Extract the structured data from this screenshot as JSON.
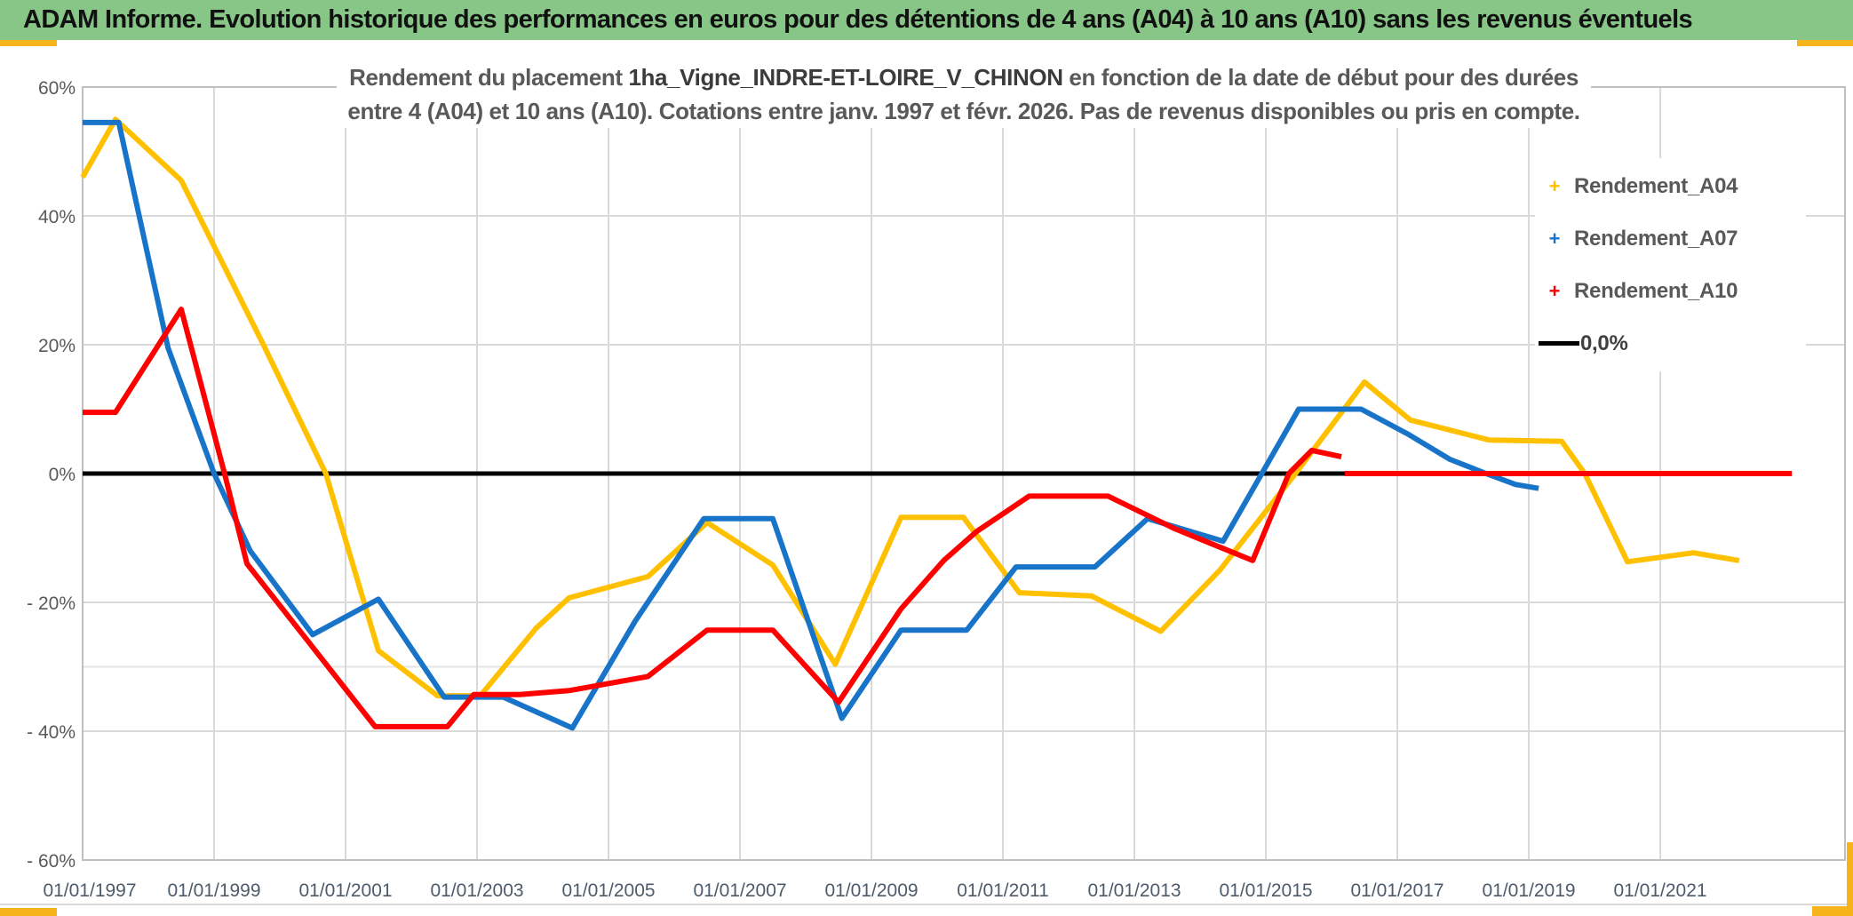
{
  "header": {
    "title": "ADAM Informe. Evolution historique des performances en euros pour des détentions de 4 ans (A04) à 10 ans (A10) sans les revenus éventuels"
  },
  "chart": {
    "title_line1_pre": "Rendement du placement ",
    "title_line1_name": "1ha_Vigne_INDRE-ET-LOIRE_V_CHINON",
    "title_line1_post": " en fonction de la date de début pour des durées",
    "title_line2": "entre 4 (A04) et 10 ans (A10). Cotations entre janv. 1997 et févr. 2026. Pas de revenus disponibles ou pris en compte.",
    "legend": [
      {
        "label": "Rendement_A04",
        "marker": "+",
        "color": "#FFC000"
      },
      {
        "label": "Rendement_A07",
        "marker": "+",
        "color": "#1874C9"
      },
      {
        "label": "Rendement_A10",
        "marker": "+",
        "color": "#FF0000"
      },
      {
        "label": "0,0%",
        "marker": "line",
        "color": "#000000"
      }
    ]
  },
  "chart_data": {
    "type": "line",
    "title": "Rendement du placement 1ha_Vigne_INDRE-ET-LOIRE_V_CHINON en fonction de la date de début pour des durées entre 4 (A04) et 10 ans (A10). Cotations entre janv. 1997 et févr. 2026. Pas de revenus disponibles ou pris en compte.",
    "x_axis": {
      "min": 1997.0,
      "max": 2023.81,
      "tick_values": [
        1997,
        1999,
        2001,
        2003,
        2005,
        2007,
        2009,
        2011,
        2013,
        2015,
        2017,
        2019,
        2021
      ],
      "tick_labels": [
        "01/01/1997",
        "01/01/1999",
        "01/01/2001",
        "01/01/2003",
        "01/01/2005",
        "01/01/2007",
        "01/01/2009",
        "01/01/2011",
        "01/01/2013",
        "01/01/2015",
        "01/01/2017",
        "01/01/2019",
        "01/01/2021"
      ],
      "label_color": "#4E5B6A"
    },
    "y_axis": {
      "min": -60,
      "max": 60,
      "tick_values": [
        60,
        40,
        20,
        0,
        -20,
        -40,
        -60
      ],
      "tick_labels": [
        "60%",
        "40%",
        "20%",
        "0%",
        "- 20%",
        "- 40%",
        "- 60%"
      ],
      "extra_gridline_value": -30,
      "label_color": "#595959"
    },
    "grid_color": "#D9D9D9",
    "border_color": "#BFBFBF",
    "zero_line": {
      "label": "0,0%",
      "value": 0,
      "x_start": 1997.0,
      "x_end": 2023.0,
      "color": "#000000"
    },
    "series": [
      {
        "name": "Rendement_A04",
        "color": "#FFC000",
        "segments": [
          [
            [
              1997.0,
              46
            ],
            [
              1997.5,
              55
            ],
            [
              1998.5,
              45.5
            ],
            [
              1999.75,
              20
            ],
            [
              2000.7,
              0
            ],
            [
              2001.5,
              -27.5
            ],
            [
              2002.4,
              -34.5
            ],
            [
              2003.05,
              -34.5
            ],
            [
              2003.9,
              -24
            ],
            [
              2004.4,
              -19.3
            ],
            [
              2005.6,
              -16
            ],
            [
              2006.5,
              -7.6
            ],
            [
              2007.5,
              -14.2
            ],
            [
              2008.45,
              -29.6
            ],
            [
              2009.45,
              -6.8
            ],
            [
              2010.4,
              -6.8
            ],
            [
              2011.25,
              -18.5
            ],
            [
              2012.35,
              -19
            ],
            [
              2013.4,
              -24.5
            ],
            [
              2014.3,
              -15
            ],
            [
              2015.45,
              0
            ],
            [
              2016.5,
              14.2
            ],
            [
              2017.2,
              8.3
            ],
            [
              2018.4,
              5.2
            ],
            [
              2019.5,
              5
            ],
            [
              2019.85,
              0
            ],
            [
              2020.5,
              -13.7
            ],
            [
              2021.5,
              -12.3
            ],
            [
              2022.2,
              -13.5
            ]
          ],
          [
            [
              2022.25,
              0
            ],
            [
              2023.0,
              0
            ]
          ]
        ]
      },
      {
        "name": "Rendement_A07",
        "color": "#1874C9",
        "segments": [
          [
            [
              1997.0,
              54.5
            ],
            [
              1997.55,
              54.5
            ],
            [
              1998.3,
              19.5
            ],
            [
              1999.0,
              0
            ],
            [
              1999.55,
              -12
            ],
            [
              2000.5,
              -25
            ],
            [
              2001.5,
              -19.5
            ],
            [
              2002.5,
              -34.7
            ],
            [
              2003.4,
              -34.7
            ],
            [
              2004.45,
              -39.5
            ],
            [
              2005.4,
              -23
            ],
            [
              2006.45,
              -7
            ],
            [
              2007.5,
              -7
            ],
            [
              2008.55,
              -38
            ],
            [
              2009.45,
              -24.3
            ],
            [
              2010.45,
              -24.3
            ],
            [
              2011.2,
              -14.5
            ],
            [
              2012.4,
              -14.5
            ],
            [
              2013.2,
              -7
            ],
            [
              2014.35,
              -10.5
            ],
            [
              2015.5,
              10
            ],
            [
              2016.45,
              10
            ],
            [
              2017.15,
              6.2
            ],
            [
              2017.8,
              2.2
            ],
            [
              2018.35,
              0
            ],
            [
              2018.8,
              -1.7
            ],
            [
              2019.15,
              -2.3
            ]
          ]
        ]
      },
      {
        "name": "Rendement_A10",
        "color": "#FF0000",
        "segments": [
          [
            [
              1997.0,
              9.5
            ],
            [
              1997.5,
              9.5
            ],
            [
              1998.5,
              25.5
            ],
            [
              1999.16,
              0
            ],
            [
              1999.5,
              -14
            ],
            [
              2000.35,
              -25
            ],
            [
              2001.45,
              -39.3
            ],
            [
              2002.55,
              -39.3
            ],
            [
              2002.95,
              -34.3
            ],
            [
              2003.65,
              -34.3
            ],
            [
              2004.4,
              -33.7
            ],
            [
              2005.6,
              -31.5
            ],
            [
              2006.5,
              -24.3
            ],
            [
              2007.5,
              -24.3
            ],
            [
              2008.5,
              -35.5
            ],
            [
              2009.45,
              -21
            ],
            [
              2010.1,
              -13.5
            ],
            [
              2010.6,
              -9
            ],
            [
              2011.4,
              -3.5
            ],
            [
              2012.6,
              -3.5
            ],
            [
              2013.6,
              -8.5
            ],
            [
              2014.2,
              -11
            ],
            [
              2014.8,
              -13.5
            ],
            [
              2015.35,
              0
            ],
            [
              2015.7,
              3.6
            ],
            [
              2016.15,
              2.6
            ]
          ],
          [
            [
              2016.2,
              0
            ],
            [
              2023.0,
              0
            ]
          ]
        ]
      }
    ],
    "legend_position": "right",
    "grid": true
  }
}
